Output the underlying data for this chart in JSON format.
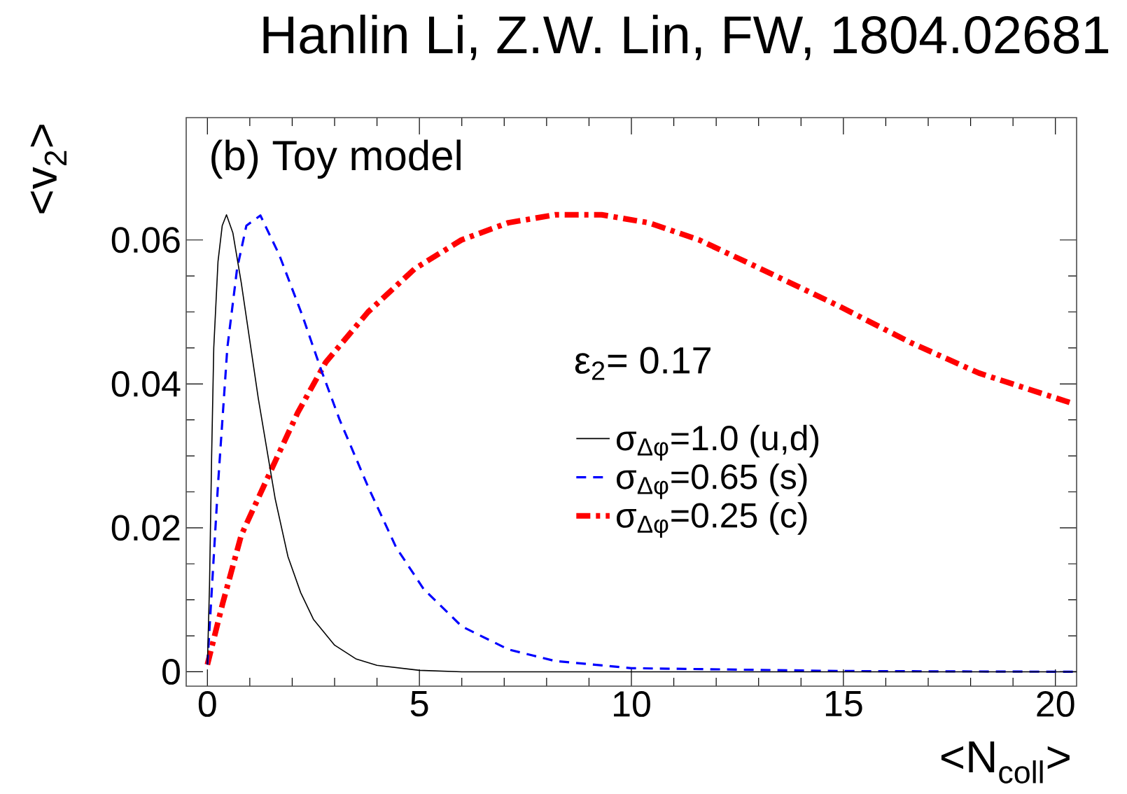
{
  "chart_data": {
    "type": "line",
    "title": "Hanlin Li, Z.W. Lin, FW, 1804.02681",
    "xlabel": "<N$_{coll}$>",
    "ylabel": "<v$_{2}$>",
    "annotations": [
      "(b) Toy model",
      "ε$_{2}$= 0.17"
    ],
    "xlim": [
      -0.5,
      20.5
    ],
    "ylim": [
      -0.002,
      0.077
    ],
    "xticks": [
      0,
      5,
      10,
      15,
      20
    ],
    "yticks": [
      0,
      0.02,
      0.04,
      0.06
    ],
    "legend": "right",
    "marker": "none",
    "series": [
      {
        "name": "σ$_{Δφ}$=1.0 (u,d)",
        "color": "#000000",
        "line_style": "solid",
        "x": [
          0,
          0.05,
          0.1,
          0.15,
          0.25,
          0.35,
          0.45,
          0.6,
          0.8,
          1.0,
          1.2,
          1.4,
          1.6,
          1.9,
          2.2,
          2.5,
          3.0,
          3.5,
          4.0,
          5.0,
          6.0,
          8.0,
          20.5
        ],
        "values": [
          0.001,
          0.012,
          0.03,
          0.045,
          0.057,
          0.062,
          0.0635,
          0.061,
          0.054,
          0.046,
          0.038,
          0.031,
          0.024,
          0.016,
          0.011,
          0.0073,
          0.0037,
          0.0018,
          0.0009,
          0.0002,
          0,
          0,
          0
        ]
      },
      {
        "name": "σ$_{Δφ}$=0.65 (s)",
        "color": "#0000ff",
        "line_style": "dashed",
        "x": [
          0,
          0.25,
          0.47,
          0.7,
          0.92,
          1.25,
          1.69,
          2.24,
          2.68,
          3.12,
          3.79,
          4.45,
          5.1,
          6.0,
          7.1,
          8.2,
          10,
          15,
          20.5
        ],
        "values": [
          0.001,
          0.026,
          0.045,
          0.056,
          0.062,
          0.0634,
          0.058,
          0.0495,
          0.042,
          0.035,
          0.0257,
          0.0173,
          0.0115,
          0.0063,
          0.0031,
          0.0015,
          0.0005,
          0.0001,
          0
        ]
      },
      {
        "name": "σ$_{Δφ}$=0.25 (c)",
        "color": "#ff0000",
        "line_style": "dashdot",
        "x": [
          0,
          0.36,
          0.8,
          1.47,
          2.13,
          2.79,
          3.79,
          4.89,
          5.99,
          7.1,
          8.2,
          9.3,
          10.4,
          11.6,
          13.3,
          14.9,
          16.6,
          18.2,
          20.4
        ],
        "values": [
          0.001,
          0.0095,
          0.019,
          0.0276,
          0.036,
          0.043,
          0.05,
          0.056,
          0.06,
          0.0624,
          0.0635,
          0.0635,
          0.0624,
          0.06,
          0.0553,
          0.0508,
          0.0457,
          0.0415,
          0.0373
        ]
      }
    ]
  }
}
